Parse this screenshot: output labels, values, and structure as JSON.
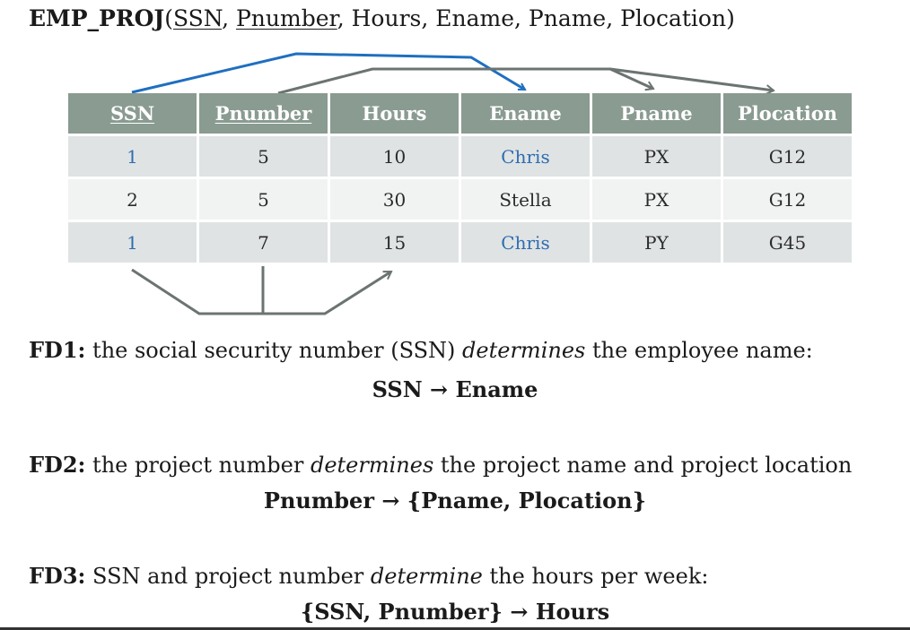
{
  "schema": {
    "relation": "EMP_PROJ",
    "open": "(",
    "attr_ssn": "SSN",
    "sep1": ", ",
    "attr_pnumber": "Pnumber",
    "rest": ", Hours, Ename, Pname, Plocation)"
  },
  "table": {
    "headers": [
      "SSN",
      "Pnumber",
      "Hours",
      "Ename",
      "Pname",
      "Plocation"
    ],
    "rows": [
      [
        "1",
        "5",
        "10",
        "Chris",
        "PX",
        "G12"
      ],
      [
        "2",
        "5",
        "30",
        "Stella",
        "PX",
        "G12"
      ],
      [
        "1",
        "7",
        "15",
        "Chris",
        "PY",
        "G45"
      ]
    ]
  },
  "fds": [
    {
      "label": "FD1:",
      "text_before": " the social security number (SSN) ",
      "emph": "determines",
      "text_after": " the employee name:",
      "expr": "SSN → Ename"
    },
    {
      "label": "FD2:",
      "text_before": " the project number ",
      "emph": "determines",
      "text_after": " the project name and project location",
      "expr": "Pnumber → {Pname, Plocation}"
    },
    {
      "label": "FD3:",
      "text_before": " SSN and project number ",
      "emph": "determine",
      "text_after": " the hours per week:",
      "expr": "{SSN, Pnumber} → Hours"
    }
  ],
  "colors": {
    "header_bg": "#8a9b91",
    "highlight_text": "#2e6db0",
    "fd1_arrow": "#1f6fc0",
    "gray_arrow": "#6b7471"
  }
}
